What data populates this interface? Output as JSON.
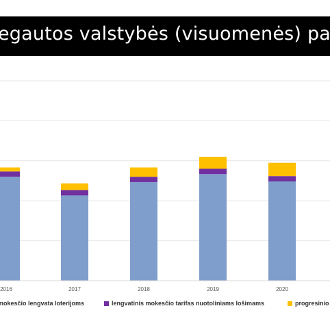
{
  "header": {
    "title": "egautos valstybės (visuomenės) pajam"
  },
  "chart_data": {
    "type": "bar",
    "stacked": true,
    "title": "egautos valstybės (visuomenės) pajam",
    "categories": [
      "2016",
      "2017",
      "2018",
      "2019",
      "2020"
    ],
    "series": [
      {
        "name": "mokesčio lengvata loterijoms",
        "color": "#7F9ECB",
        "values": [
          78,
          64,
          74,
          80,
          74.5
        ]
      },
      {
        "name": "lengvatinis mokesčio tarifas nuotoliniams lošimams",
        "color": "#7030A0",
        "values": [
          4,
          4,
          4,
          4,
          4
        ]
      },
      {
        "name": "progresinio",
        "color": "#FFC000",
        "values": [
          3,
          5,
          7,
          9,
          10
        ]
      }
    ],
    "ylim": [
      0,
      150
    ],
    "grid": true,
    "legend": "bottom"
  }
}
